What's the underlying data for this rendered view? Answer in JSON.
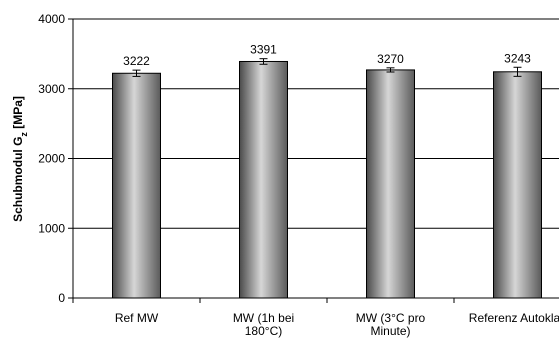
{
  "chart_data": {
    "type": "bar",
    "categories": [
      [
        "Ref MW"
      ],
      [
        "MW (1h bei",
        "180°C)"
      ],
      [
        "MW (3°C pro",
        "Minute)"
      ],
      [
        "Referenz Autoklav"
      ]
    ],
    "values": [
      3222,
      3391,
      3270,
      3243
    ],
    "errors": [
      45,
      40,
      30,
      65
    ],
    "data_labels": [
      "3222",
      "3391",
      "3270",
      "3243"
    ],
    "ylabel": {
      "prefix": "Schubmodul G",
      "subscript": "z",
      "suffix": " [MPa]"
    },
    "ylim": [
      0,
      4000
    ],
    "yticks": [
      0,
      1000,
      2000,
      3000,
      4000
    ],
    "ytick_labels": [
      "0",
      "1000",
      "2000",
      "3000",
      "4000"
    ],
    "grid": true,
    "legend": false,
    "bar_color": "#8c8c8c"
  }
}
